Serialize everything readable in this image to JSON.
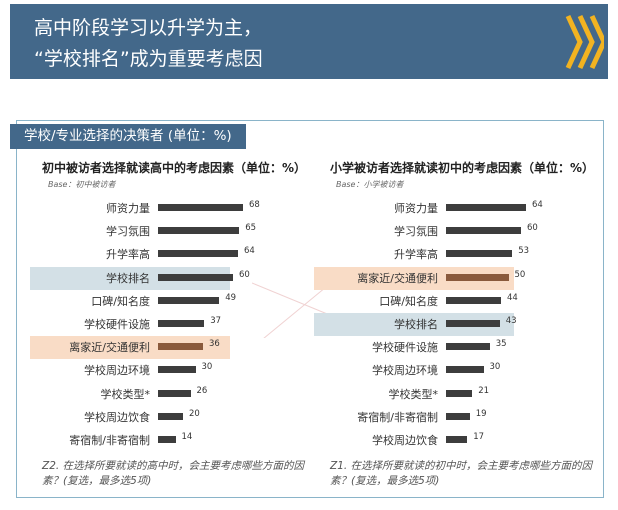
{
  "header": {
    "title_line1": "高中阶段学习以升学为主，",
    "title_line2": "“学校排名”成为重要考虑因"
  },
  "section": {
    "title": "学校/专业选择的决策者 (单位：%)"
  },
  "colors": {
    "banner": "#43688a",
    "bar": "#3d3d3d",
    "highlight_gray": "#d3e0e6",
    "highlight_orange": "#f9dcc6",
    "bar_orange": "#8a5a3c",
    "chevron": "#f2b321"
  },
  "chart_data": [
    {
      "type": "bar",
      "title": "初中被访者选择就读高中的考虑因素（单位：%）",
      "subtitle": "Base：初中被访者",
      "categories": [
        "师资力量",
        "学习氛围",
        "升学率高",
        "学校排名",
        "口碑/知名度",
        "学校硬件设施",
        "离家近/交通便利",
        "学校周边环境",
        "学校类型*",
        "学校周边饮食",
        "寄宿制/非寄宿制"
      ],
      "values": [
        68,
        65,
        64,
        60,
        49,
        37,
        36,
        30,
        26,
        20,
        14
      ],
      "highlights": [
        {
          "index": 3,
          "color": "gray"
        },
        {
          "index": 6,
          "color": "orange"
        }
      ],
      "note": "Z2. 在选择所要就读的高中时，会主要考虑哪些方面的因素？(复选，最多选5项)",
      "xlim": [
        0,
        100
      ]
    },
    {
      "type": "bar",
      "title": "小学被访者选择就读初中的考虑因素（单位：%）",
      "subtitle": "Base：小学被访者",
      "categories": [
        "师资力量",
        "学习氛围",
        "升学率高",
        "离家近/交通便利",
        "口碑/知名度",
        "学校排名",
        "学校硬件设施",
        "学校周边环境",
        "学校类型*",
        "寄宿制/非寄宿制",
        "学校周边饮食"
      ],
      "values": [
        64,
        60,
        53,
        50,
        44,
        43,
        35,
        30,
        21,
        19,
        17
      ],
      "highlights": [
        {
          "index": 3,
          "color": "orange"
        },
        {
          "index": 5,
          "color": "gray"
        }
      ],
      "note": "Z1. 在选择所要就读的初中时，会主要考虑哪些方面的因素？(复选，最多选5项)",
      "xlim": [
        0,
        100
      ]
    }
  ]
}
